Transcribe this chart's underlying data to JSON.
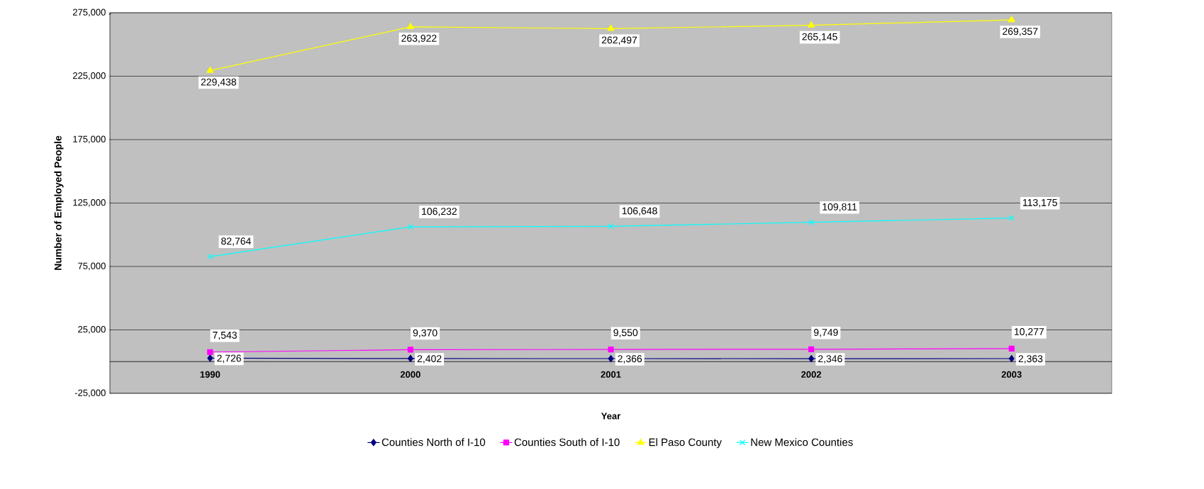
{
  "chart_data": {
    "type": "line",
    "xlabel": "Year",
    "ylabel": "Number of Employed People",
    "categories": [
      "1990",
      "2000",
      "2001",
      "2002",
      "2003"
    ],
    "ylim": [
      -25000,
      275000
    ],
    "yticks": [
      {
        "value": -25000,
        "label": "-25,000"
      },
      {
        "value": 25000,
        "label": "25,000"
      },
      {
        "value": 75000,
        "label": "75,000"
      },
      {
        "value": 125000,
        "label": "125,000"
      },
      {
        "value": 175000,
        "label": "175,000"
      },
      {
        "value": 225000,
        "label": "225,000"
      },
      {
        "value": 275000,
        "label": "275,000"
      }
    ],
    "grid": "y",
    "legend": "bottom",
    "series": [
      {
        "name": "Counties North of I-10",
        "color": "#000080",
        "marker": "diamond",
        "values": [
          2726,
          2402,
          2366,
          2346,
          2363
        ],
        "value_labels": [
          "2,726",
          "2,402",
          "2,366",
          "2,346",
          "2,363"
        ]
      },
      {
        "name": "Counties South of I-10",
        "color": "#ff00ff",
        "marker": "square",
        "values": [
          7543,
          9370,
          9550,
          9749,
          10277
        ],
        "value_labels": [
          "7,543",
          "9,370",
          "9,550",
          "9,749",
          "10,277"
        ]
      },
      {
        "name": "El Paso County",
        "color": "#ffff00",
        "marker": "triangle",
        "values": [
          229438,
          263922,
          262497,
          265145,
          269357
        ],
        "value_labels": [
          "229,438",
          "263,922",
          "262,497",
          "265,145",
          "269,357"
        ]
      },
      {
        "name": "New Mexico Counties",
        "color": "#00ffff",
        "marker": "cross",
        "values": [
          82764,
          106232,
          106648,
          109811,
          113175
        ],
        "value_labels": [
          "82,764",
          "106,232",
          "106,648",
          "109,811",
          "113,175"
        ]
      }
    ]
  }
}
